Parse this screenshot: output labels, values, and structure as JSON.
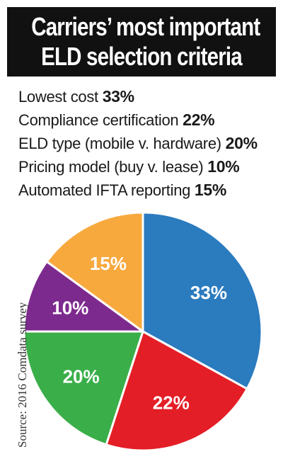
{
  "title": {
    "line1": "Carriers’ most important",
    "line2": "ELD selection criteria"
  },
  "source": "Source: 2016 Comdata survey",
  "chart_data": {
    "type": "pie",
    "categories": [
      "Lowest cost",
      "Compliance certification",
      "ELD type (mobile v. hardware)",
      "Pricing model (buy v. lease)",
      "Automated IFTA reporting"
    ],
    "values": [
      33,
      22,
      20,
      10,
      15
    ],
    "value_labels": [
      "33%",
      "22%",
      "20%",
      "10%",
      "15%"
    ],
    "colors": [
      "#2b7bbf",
      "#e41e26",
      "#3aae49",
      "#7d2a8e",
      "#f8a93e"
    ],
    "start_angle_deg": 0,
    "direction": "clockwise",
    "legend_placement": "top"
  }
}
